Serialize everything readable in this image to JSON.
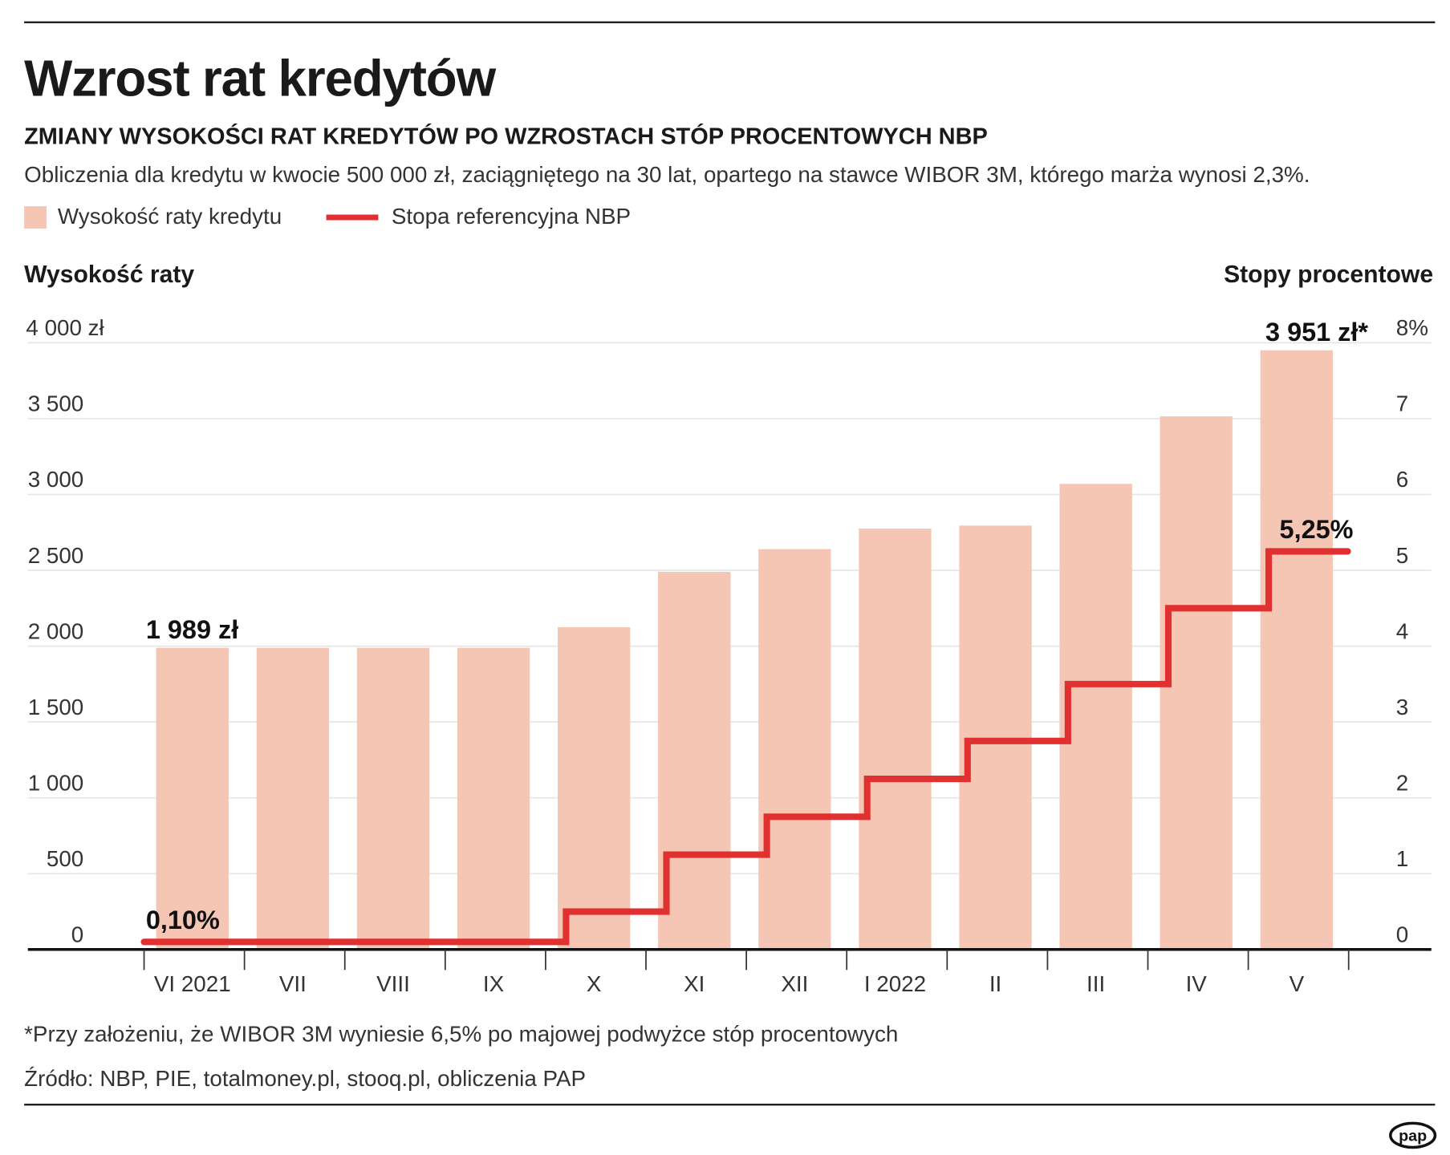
{
  "title": "Wzrost rat kredytów",
  "subtitle": "ZMIANY WYSOKOŚCI RAT KREDYTÓW PO WZROSTACH STÓP PROCENTOWYCH NBP",
  "description": "Obliczenia dla kredytu w kwocie 500 000 zł, zaciągniętego na 30 lat, opartego na stawce WIBOR 3M, którego marża wynosi 2,3%.",
  "footnote": "*Przy założeniu, że WIBOR 3M wyniesie 6,5% po majowej podwyżce stóp procentowych",
  "source": "Źródło: NBP, PIE, totalmoney.pl, stooq.pl, obliczenia PAP",
  "logo": "pap",
  "chart_data": {
    "type": "bar+step-line",
    "categories": [
      "VI 2021",
      "VII",
      "VIII",
      "IX",
      "X",
      "XI",
      "XII",
      "I 2022",
      "II",
      "III",
      "IV",
      "V"
    ],
    "series": [
      {
        "name": "Wysokość raty kredytu",
        "type": "bar",
        "axis": "left",
        "color": "#f6c6b4",
        "values": [
          1989,
          1989,
          1989,
          1989,
          2125,
          2490,
          2640,
          2775,
          2795,
          3070,
          3515,
          3951
        ]
      },
      {
        "name": "Stopa referencyjna NBP",
        "type": "step-line",
        "axis": "right",
        "color": "#e03030",
        "values": [
          0.1,
          0.1,
          0.1,
          0.1,
          0.5,
          1.25,
          1.75,
          2.25,
          2.75,
          3.5,
          4.5,
          5.25
        ]
      }
    ],
    "ylabel_left": "Wysokość raty",
    "ylabel_right": "Stopy procentowe",
    "ylim_left": [
      0,
      4000
    ],
    "ylim_right": [
      0,
      8
    ],
    "yticks_left": [
      "0",
      "500",
      "1 000",
      "1 500",
      "2 000",
      "2 500",
      "3 000",
      "3 500",
      "4 000 zł"
    ],
    "yticks_right": [
      "0",
      "1",
      "2",
      "3",
      "4",
      "5",
      "6",
      "7",
      "8%"
    ],
    "grid": true,
    "legend_position": "top-left",
    "annotations": {
      "first_bar": "1 989 zł",
      "last_bar": "3 951 zł*",
      "first_rate": "0,10%",
      "last_rate": "5,25%"
    }
  }
}
